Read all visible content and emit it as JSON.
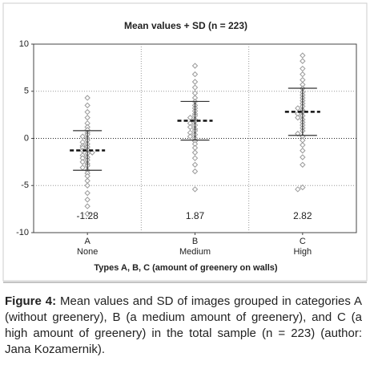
{
  "chart_data": {
    "type": "dotplot",
    "title": "Mean values + SD (n = 223)",
    "x_label": "Types A, B, C (amount of greenery on walls)",
    "categories": [
      "A",
      "B",
      "C"
    ],
    "category_sublabels": [
      "None",
      "Medium",
      "High"
    ],
    "values": [
      -1.28,
      1.87,
      2.82
    ],
    "value_labels": [
      "-1.28",
      "1.87",
      "2.82"
    ],
    "sd": [
      2.1,
      2.05,
      2.5
    ],
    "points": [
      [
        4.3,
        3.5,
        2.8,
        2.2,
        1.6,
        1.2,
        0.9,
        0.6,
        0.4,
        0.2,
        0.0,
        -0.2,
        -0.4,
        -0.6,
        -0.8,
        -0.9,
        -1.0,
        -1.2,
        -1.3,
        -1.5,
        -1.6,
        -1.8,
        -2.0,
        -2.1,
        -2.3,
        -2.5,
        -2.7,
        -2.9,
        -3.1,
        -3.4,
        -3.7,
        -4.0,
        -4.5,
        -5.0,
        -5.8,
        -6.5,
        -7.2,
        -8.0
      ],
      [
        7.7,
        6.8,
        6.0,
        5.4,
        4.8,
        4.3,
        3.9,
        3.5,
        3.2,
        2.9,
        2.6,
        2.4,
        2.2,
        2.0,
        1.8,
        1.6,
        1.4,
        1.2,
        1.0,
        0.8,
        0.6,
        0.4,
        0.2,
        0.0,
        -0.3,
        -0.6,
        -1.0,
        -1.5,
        -2.1,
        -2.8,
        -3.5,
        -5.4
      ],
      [
        8.8,
        8.2,
        7.4,
        6.8,
        6.2,
        5.7,
        5.3,
        4.9,
        4.6,
        4.3,
        4.0,
        3.7,
        3.4,
        3.2,
        3.0,
        2.8,
        2.6,
        2.4,
        2.2,
        2.0,
        1.7,
        1.4,
        1.1,
        0.8,
        0.5,
        0.2,
        -0.2,
        -0.7,
        -1.3,
        -2.0,
        -2.8,
        -5.2,
        -5.4
      ]
    ],
    "point_color": "#9a9a9a",
    "ylim": [
      -10,
      10
    ],
    "yticks": [
      -10,
      -5,
      0,
      5,
      10
    ],
    "grid": true
  },
  "caption": {
    "label": "Figure 4:",
    "text": "Mean values and SD of images grouped in categories A (without greenery), B (a medium amount of greenery), and C (a high amount of greenery) in the total sample (n = 223) (author: Jana Kozamernik)."
  }
}
